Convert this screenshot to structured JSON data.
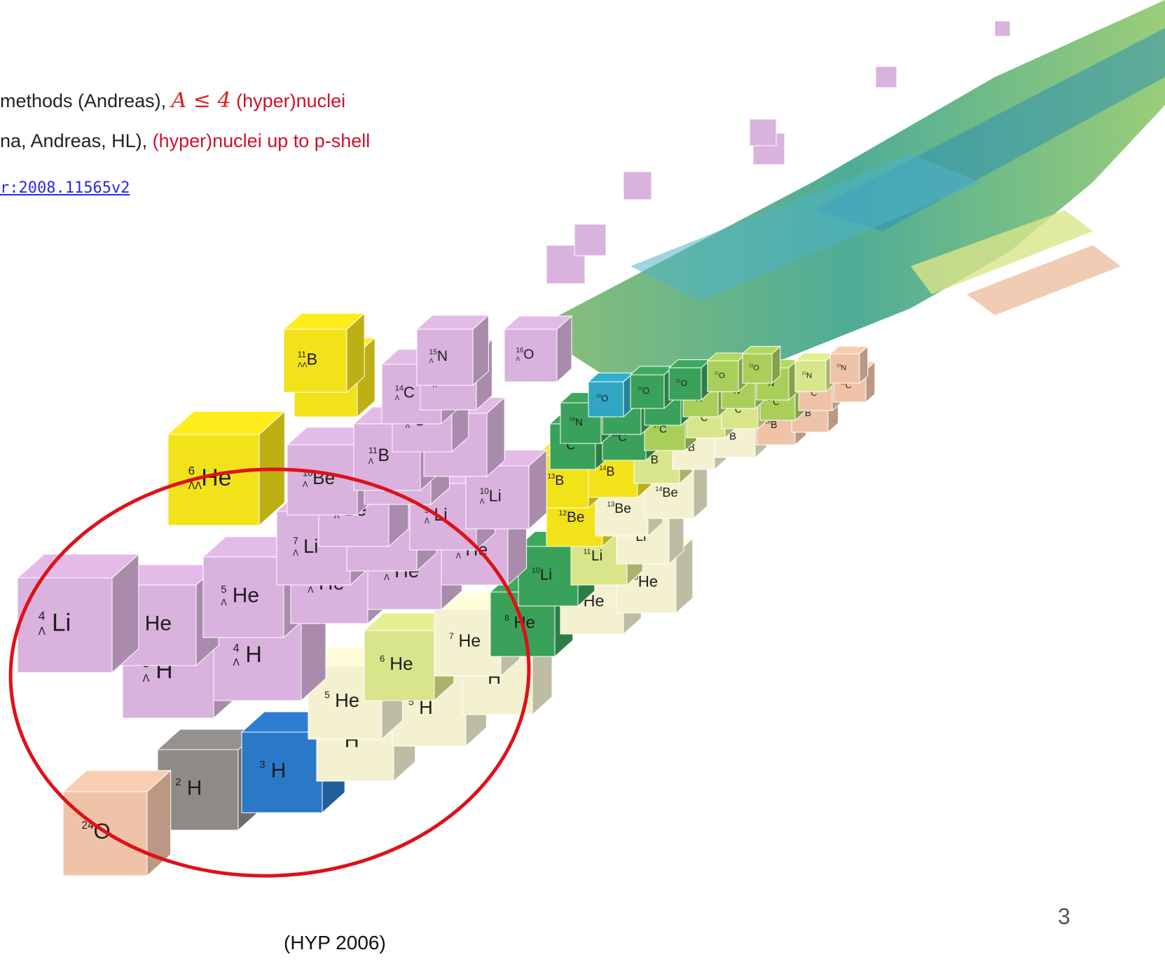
{
  "header": {
    "line1_a": "methods (Andreas), ",
    "line1_math": "A ≤ 4",
    "line1_b": " (hyper)nuclei",
    "line2_a": "na, Andreas, HL),  ",
    "line2_b": "(hyper)nuclei up to p-shell",
    "link": "r:2008.11565v2"
  },
  "caption": "(HYP 2006)",
  "page_number": "3",
  "colors": {
    "hyper": "#d9b2dd",
    "double_hyper": "#f2e21a",
    "ellipse": "#e01018",
    "cream": "#f4f1d0",
    "peach": "#efc3a8",
    "gray": "#8e8b86",
    "blue": "#2b78c8",
    "green": "#3aa15a",
    "yellow_green": "#d9e58a",
    "lime": "#a9cf5a"
  },
  "nuclei": [
    {
      "mass": "1",
      "el": "H",
      "kind": "stone"
    },
    {
      "mass": "2",
      "el": "H",
      "kind": "stone"
    },
    {
      "mass": "3",
      "el": "H",
      "kind": "blue"
    },
    {
      "mass": "4",
      "el": "H",
      "kind": "cream"
    },
    {
      "mass": "5",
      "el": "H",
      "kind": "cream"
    },
    {
      "mass": "6",
      "el": "H",
      "kind": "cream"
    },
    {
      "mass": "5",
      "el": "He",
      "kind": "cream"
    },
    {
      "mass": "6",
      "el": "He",
      "kind": "yellow_green"
    },
    {
      "mass": "7",
      "el": "He",
      "kind": "cream"
    },
    {
      "mass": "8",
      "el": "He",
      "kind": "green"
    },
    {
      "mass": "9",
      "el": "He",
      "kind": "cream"
    },
    {
      "mass": "10",
      "el": "He",
      "kind": "cream"
    },
    {
      "mass": "10",
      "el": "Li",
      "kind": "green"
    },
    {
      "mass": "11",
      "el": "Li",
      "kind": "yellow_green"
    },
    {
      "mass": "12",
      "el": "Li",
      "kind": "cream"
    },
    {
      "mass": "12",
      "el": "Be",
      "kind": "yellow"
    },
    {
      "mass": "13",
      "el": "Be",
      "kind": "cream"
    },
    {
      "mass": "14",
      "el": "Be",
      "kind": "cream"
    },
    {
      "mass": "13",
      "el": "B",
      "kind": "yellow"
    },
    {
      "mass": "14",
      "el": "B",
      "kind": "yellow"
    },
    {
      "mass": "15",
      "el": "B",
      "kind": "yellow_green"
    },
    {
      "mass": "16",
      "el": "B",
      "kind": "cream"
    },
    {
      "mass": "17",
      "el": "B",
      "kind": "cream"
    },
    {
      "mass": "18",
      "el": "B",
      "kind": "peach"
    },
    {
      "mass": "19",
      "el": "B",
      "kind": "peach"
    },
    {
      "mass": "15",
      "el": "C",
      "kind": "green"
    },
    {
      "mass": "16",
      "el": "C",
      "kind": "green"
    },
    {
      "mass": "17",
      "el": "C",
      "kind": "lime"
    },
    {
      "mass": "18",
      "el": "C",
      "kind": "yellow_green"
    },
    {
      "mass": "19",
      "el": "C",
      "kind": "yellow_green"
    },
    {
      "mass": "20",
      "el": "C",
      "kind": "lime"
    },
    {
      "mass": "21",
      "el": "C",
      "kind": "peach"
    },
    {
      "mass": "22",
      "el": "C",
      "kind": "peach"
    },
    {
      "mass": "16",
      "el": "N",
      "kind": "green"
    },
    {
      "mass": "17",
      "el": "N",
      "kind": "green"
    },
    {
      "mass": "18",
      "el": "N",
      "kind": "green"
    },
    {
      "mass": "19",
      "el": "N",
      "kind": "lime"
    },
    {
      "mass": "20",
      "el": "N",
      "kind": "lime"
    },
    {
      "mass": "21",
      "el": "N",
      "kind": "lime"
    },
    {
      "mass": "22",
      "el": "N",
      "kind": "yellow_green"
    },
    {
      "mass": "23",
      "el": "N",
      "kind": "peach"
    },
    {
      "mass": "19",
      "el": "O",
      "kind": "teal"
    },
    {
      "mass": "20",
      "el": "O",
      "kind": "green"
    },
    {
      "mass": "21",
      "el": "O",
      "kind": "green"
    },
    {
      "mass": "22",
      "el": "O",
      "kind": "lime"
    },
    {
      "mass": "23",
      "el": "O",
      "kind": "lime"
    },
    {
      "mass": "24",
      "el": "O",
      "kind": "peach"
    }
  ],
  "hypernuclei": [
    {
      "mass": "3",
      "el": "H",
      "lambda": "Λ"
    },
    {
      "mass": "4",
      "el": "H",
      "lambda": "Λ"
    },
    {
      "mass": "4",
      "el": "He",
      "lambda": "Λ"
    },
    {
      "mass": "4",
      "el": "Li",
      "lambda": "Λ"
    },
    {
      "mass": "5",
      "el": "He",
      "lambda": "Λ"
    },
    {
      "mass": "6",
      "el": "He",
      "lambda": "Λ"
    },
    {
      "mass": "7",
      "el": "He",
      "lambda": "Λ"
    },
    {
      "mass": "8",
      "el": "He",
      "lambda": "Λ"
    },
    {
      "mass": "7",
      "el": "Li",
      "lambda": "Λ"
    },
    {
      "mass": "8",
      "el": "Li",
      "lambda": "Λ"
    },
    {
      "mass": "9",
      "el": "Li",
      "lambda": "Λ"
    },
    {
      "mass": "10",
      "el": "Li",
      "lambda": "Λ"
    },
    {
      "mass": "9",
      "el": "Be",
      "lambda": "Λ"
    },
    {
      "mass": "10",
      "el": "Be",
      "lambda": "Λ"
    },
    {
      "mass": "10",
      "el": "B",
      "lambda": "Λ"
    },
    {
      "mass": "11",
      "el": "B",
      "lambda": "Λ"
    },
    {
      "mass": "12",
      "el": "B",
      "lambda": "Λ"
    },
    {
      "mass": "13",
      "el": "C",
      "lambda": "Λ"
    },
    {
      "mass": "14",
      "el": "C",
      "lambda": "Λ"
    },
    {
      "mass": "14",
      "el": "N",
      "lambda": "Λ"
    },
    {
      "mass": "15",
      "el": "N",
      "lambda": "Λ"
    },
    {
      "mass": "16",
      "el": "O",
      "lambda": "Λ"
    }
  ],
  "double_hypernuclei": [
    {
      "mass": "6",
      "el": "He",
      "lambda": "ΛΛ"
    },
    {
      "mass": "10",
      "el": "Be",
      "lambda": "ΛΛ"
    },
    {
      "mass": "11",
      "el": "B",
      "lambda": "ΛΛ"
    }
  ]
}
